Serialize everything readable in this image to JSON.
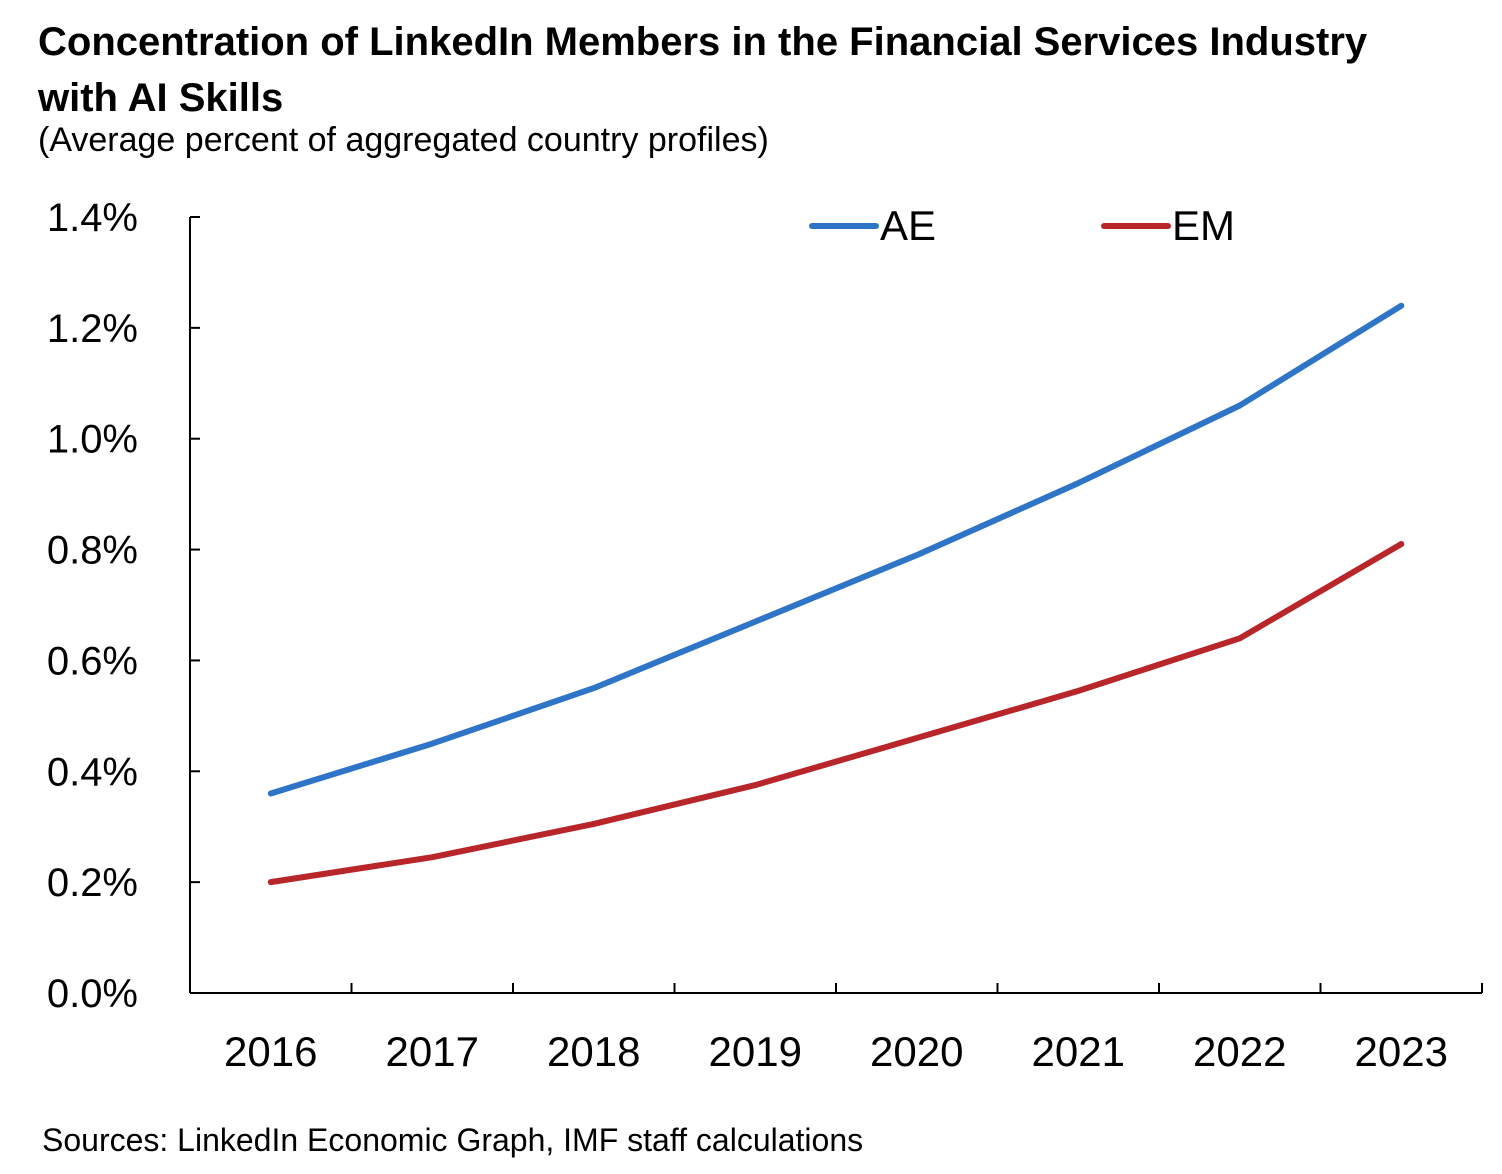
{
  "title": "Concentration of LinkedIn Members in the Financial Services Industry with AI Skills",
  "subtitle": "(Average percent of aggregated country profiles)",
  "source": "Sources: LinkedIn Economic Graph, IMF staff calculations",
  "chart_data": {
    "type": "line",
    "x": [
      "2016",
      "2017",
      "2018",
      "2019",
      "2020",
      "2021",
      "2022",
      "2023"
    ],
    "series": [
      {
        "name": "AE",
        "color": "#2e75c8",
        "values": [
          0.36,
          0.45,
          0.55,
          0.67,
          0.79,
          0.92,
          1.06,
          1.24
        ]
      },
      {
        "name": "EM",
        "color": "#b8262a",
        "values": [
          0.2,
          0.245,
          0.305,
          0.375,
          0.46,
          0.545,
          0.64,
          0.81
        ]
      }
    ],
    "yticks": [
      "0.0%",
      "0.2%",
      "0.4%",
      "0.6%",
      "0.8%",
      "1.0%",
      "1.2%",
      "1.4%"
    ],
    "ylim": [
      0,
      1.4
    ],
    "legend_position": "top",
    "grid": false
  }
}
